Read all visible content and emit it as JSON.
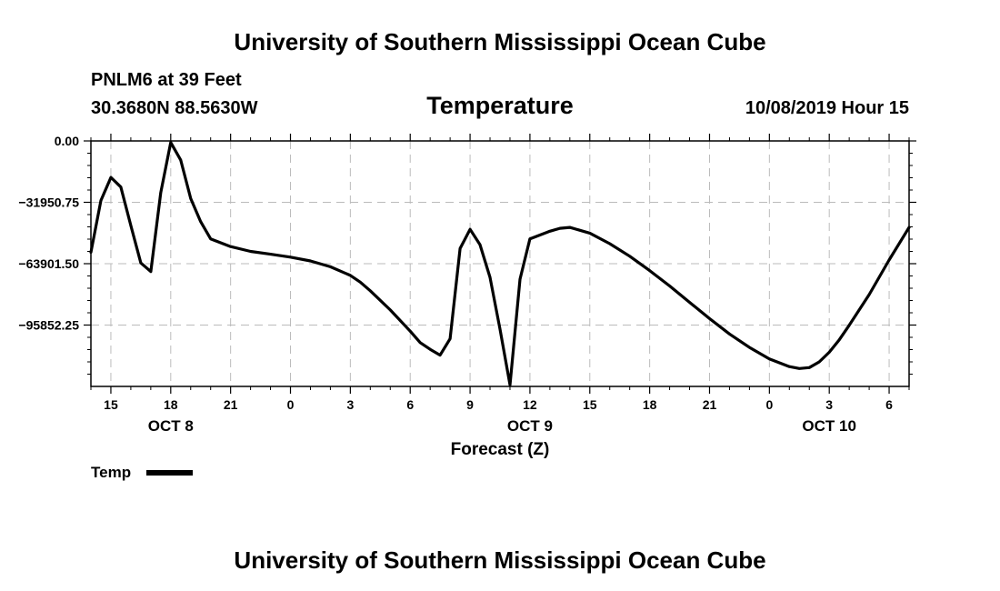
{
  "header": {
    "top_title": "University of Southern Mississippi Ocean Cube",
    "station": "PNLM6 at 39 Feet",
    "coords": "30.3680N 88.5630W",
    "datetime": "10/08/2019 Hour 15",
    "bottom_title": "University of Southern Mississippi Ocean Cube"
  },
  "chart_data": {
    "type": "line",
    "title": "Temperature",
    "xlabel": "Forecast (Z)",
    "ylabel": "",
    "x_unit": "hours since OCT 8 00Z",
    "xlim": [
      13.0,
      54.0
    ],
    "ylim": [
      -127803.0,
      0.0
    ],
    "grid": true,
    "line_color": "#000000",
    "grid_color": "#bbbbbb",
    "y_ticks": [
      {
        "value": 0.0,
        "label": "0.00"
      },
      {
        "value": -31950.75,
        "label": "−31950.75"
      },
      {
        "value": -63901.5,
        "label": "−63901.50"
      },
      {
        "value": -95852.25,
        "label": "−95852.25"
      }
    ],
    "y_minor_ticks": [
      -6390,
      -12780,
      -19170,
      -25560,
      -38341,
      -44731,
      -51121,
      -57511,
      -70292,
      -76682,
      -83072,
      -89462,
      -102243,
      -108633,
      -115023,
      -121413
    ],
    "x_ticks": [
      {
        "value": 14,
        "label": "15"
      },
      {
        "value": 17,
        "label": "18"
      },
      {
        "value": 20,
        "label": "21"
      },
      {
        "value": 23,
        "label": "0"
      },
      {
        "value": 26,
        "label": "3"
      },
      {
        "value": 29,
        "label": "6"
      },
      {
        "value": 32,
        "label": "9"
      },
      {
        "value": 35,
        "label": "12"
      },
      {
        "value": 38,
        "label": "15"
      },
      {
        "value": 41,
        "label": "18"
      },
      {
        "value": 44,
        "label": "21"
      },
      {
        "value": 47,
        "label": "0"
      },
      {
        "value": 50,
        "label": "3"
      },
      {
        "value": 53,
        "label": "6"
      }
    ],
    "x_minor_ticks": [
      13,
      15,
      16,
      18,
      19,
      21,
      22,
      24,
      25,
      27,
      28,
      30,
      31,
      33,
      34,
      36,
      37,
      39,
      40,
      42,
      43,
      45,
      46,
      48,
      49,
      51,
      52,
      54
    ],
    "date_labels": [
      {
        "value": 17,
        "label": "OCT 8"
      },
      {
        "value": 35,
        "label": "OCT 9"
      },
      {
        "value": 50,
        "label": "OCT 10"
      }
    ],
    "series": [
      {
        "name": "Temp",
        "x": [
          13.0,
          13.5,
          14.0,
          14.5,
          15.0,
          15.5,
          16.0,
          16.5,
          17.0,
          17.5,
          18.0,
          18.5,
          19.0,
          19.5,
          20.0,
          21.0,
          22.0,
          23.0,
          24.0,
          25.0,
          26.0,
          26.5,
          27.0,
          28.0,
          29.0,
          29.5,
          30.0,
          30.5,
          31.0,
          31.5,
          32.0,
          32.5,
          33.0,
          33.5,
          34.0,
          34.5,
          35.0,
          35.5,
          36.0,
          36.5,
          37.0,
          38.0,
          39.0,
          40.0,
          41.0,
          42.0,
          43.0,
          44.0,
          45.0,
          46.0,
          47.0,
          48.0,
          48.5,
          49.0,
          49.5,
          50.0,
          50.5,
          51.0,
          52.0,
          53.0,
          54.0
        ],
        "values": [
          -58000,
          -31000,
          -19000,
          -24000,
          -44000,
          -63500,
          -68000,
          -27000,
          -800,
          -10000,
          -30000,
          -42000,
          -51000,
          -53000,
          -55000,
          -57500,
          -59000,
          -60500,
          -62500,
          -65500,
          -70000,
          -73500,
          -78000,
          -88000,
          -99000,
          -105000,
          -108500,
          -111500,
          -103000,
          -56000,
          -46000,
          -54000,
          -71000,
          -98000,
          -127000,
          -72000,
          -51000,
          -49000,
          -47000,
          -45500,
          -45000,
          -48000,
          -53500,
          -60000,
          -67500,
          -75500,
          -84000,
          -92500,
          -100500,
          -107500,
          -113500,
          -117500,
          -118500,
          -118000,
          -115000,
          -110000,
          -103500,
          -96000,
          -80000,
          -62000,
          -45000
        ]
      }
    ]
  },
  "legend": {
    "label": "Temp"
  }
}
